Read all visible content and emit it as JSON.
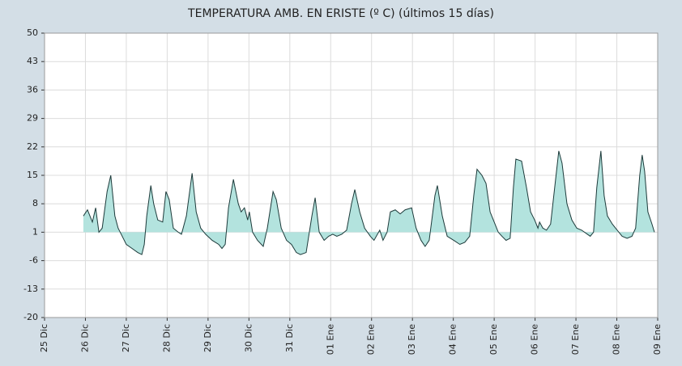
{
  "chart_data": {
    "type": "area",
    "title": "TEMPERATURA AMB. EN ERISTE  (º C)  (últimos 15 días)",
    "x": [
      0.95,
      1.05,
      1.17,
      1.25,
      1.33,
      1.41,
      1.53,
      1.62,
      1.72,
      1.8,
      1.9,
      2.0,
      2.14,
      2.28,
      2.38,
      2.44,
      2.5,
      2.6,
      2.67,
      2.77,
      2.89,
      2.97,
      3.05,
      3.15,
      3.27,
      3.35,
      3.47,
      3.61,
      3.71,
      3.82,
      3.94,
      4.1,
      4.26,
      4.34,
      4.42,
      4.5,
      4.62,
      4.74,
      4.81,
      4.89,
      4.97,
      5.01,
      5.09,
      5.21,
      5.35,
      5.45,
      5.59,
      5.67,
      5.79,
      5.92,
      6.04,
      6.16,
      6.26,
      6.4,
      6.54,
      6.62,
      6.72,
      6.84,
      6.95,
      7.05,
      7.15,
      7.27,
      7.39,
      7.51,
      7.59,
      7.71,
      7.83,
      7.97,
      8.06,
      8.2,
      8.28,
      8.38,
      8.46,
      8.58,
      8.7,
      8.82,
      8.98,
      9.09,
      9.21,
      9.31,
      9.41,
      9.55,
      9.61,
      9.73,
      9.85,
      10.01,
      10.16,
      10.28,
      10.4,
      10.5,
      10.58,
      10.7,
      10.8,
      10.9,
      10.98,
      11.1,
      11.19,
      11.29,
      11.39,
      11.47,
      11.53,
      11.67,
      11.79,
      11.89,
      11.99,
      12.07,
      12.11,
      12.19,
      12.28,
      12.38,
      12.48,
      12.58,
      12.66,
      12.78,
      12.9,
      13.02,
      13.14,
      13.28,
      13.35,
      13.43,
      13.51,
      13.61,
      13.69,
      13.77,
      13.89,
      14.01,
      14.13,
      14.25,
      14.37,
      14.46,
      14.56,
      14.62,
      14.68,
      14.76,
      14.86,
      14.92
    ],
    "values": [
      5,
      6.5,
      3.5,
      7,
      1,
      2,
      11,
      15,
      5,
      2,
      0,
      -2,
      -3,
      -4,
      -4.5,
      -2,
      5,
      12.5,
      8,
      4,
      3.5,
      11,
      9,
      2,
      1,
      0.5,
      5,
      15.5,
      6,
      2,
      0.5,
      -1,
      -2,
      -3,
      -2,
      7,
      14,
      8,
      6,
      7,
      4,
      6,
      1,
      -1,
      -2.5,
      2,
      11,
      9,
      2,
      -1,
      -2,
      -4,
      -4.5,
      -4,
      5,
      9.5,
      1,
      -1,
      0,
      0.5,
      0,
      0.5,
      1.5,
      8,
      11.5,
      6,
      2,
      0,
      -1,
      1.5,
      -1,
      1,
      6,
      6.5,
      5.5,
      6.5,
      7,
      2,
      -1,
      -2.5,
      -1,
      10,
      12.5,
      5,
      0,
      -1,
      -2,
      -1.5,
      0,
      10,
      16.5,
      15,
      13,
      6,
      4,
      1,
      0,
      -1,
      -0.5,
      12,
      19,
      18.5,
      12,
      6,
      4,
      2,
      3.5,
      2,
      1.5,
      3,
      12,
      21,
      18,
      8,
      4,
      2,
      1.5,
      0.5,
      0,
      1,
      12,
      21,
      10,
      5,
      3,
      1.5,
      0,
      -0.5,
      0,
      2,
      15,
      20,
      16,
      6,
      3,
      1
    ],
    "fill_to": 1,
    "color": "#1c3a3a",
    "fill": "#b3e3de",
    "xlim": [
      0,
      15
    ],
    "xticks": [
      {
        "value": 0,
        "label": "25 Dic"
      },
      {
        "value": 1,
        "label": "26 Dic"
      },
      {
        "value": 2,
        "label": "27 Dic"
      },
      {
        "value": 3,
        "label": "28 Dic"
      },
      {
        "value": 4,
        "label": "29 Dic"
      },
      {
        "value": 5,
        "label": "30 Dic"
      },
      {
        "value": 6,
        "label": "31 Dic"
      },
      {
        "value": 7,
        "label": "01 Ene"
      },
      {
        "value": 8,
        "label": "02 Ene"
      },
      {
        "value": 9,
        "label": "03 Ene"
      },
      {
        "value": 10,
        "label": "04 Ene"
      },
      {
        "value": 11,
        "label": "05 Ene"
      },
      {
        "value": 12,
        "label": "06 Ene"
      },
      {
        "value": 13,
        "label": "07 Ene"
      },
      {
        "value": 14,
        "label": "08 Ene"
      },
      {
        "value": 15,
        "label": "09 Ene"
      }
    ],
    "ylim": [
      -20,
      50
    ],
    "yticks": [
      -20,
      -13,
      -6,
      1,
      8,
      15,
      22,
      29,
      36,
      43,
      50
    ],
    "grid": true
  }
}
